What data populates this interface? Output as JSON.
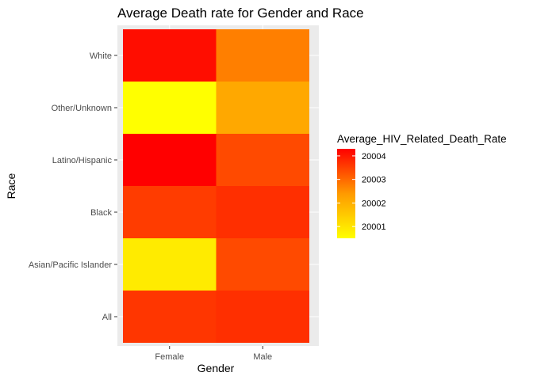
{
  "chart_data": {
    "type": "heatmap",
    "title": "Average Death rate for Gender and Race",
    "xlabel": "Gender",
    "ylabel": "Race",
    "x_categories": [
      "Female",
      "Male"
    ],
    "y_categories": [
      "All",
      "Asian/Pacific Islander",
      "Black",
      "Latino/Hispanic",
      "Other/Unknown",
      "White"
    ],
    "cells": [
      {
        "x": "Female",
        "y": "All",
        "value": 20003.5
      },
      {
        "x": "Male",
        "y": "All",
        "value": 20003.6
      },
      {
        "x": "Female",
        "y": "Asian/Pacific Islander",
        "value": 20000.8
      },
      {
        "x": "Male",
        "y": "Asian/Pacific Islander",
        "value": 20003.2
      },
      {
        "x": "Female",
        "y": "Black",
        "value": 20003.4
      },
      {
        "x": "Male",
        "y": "Black",
        "value": 20003.6
      },
      {
        "x": "Female",
        "y": "Latino/Hispanic",
        "value": 20004.3
      },
      {
        "x": "Male",
        "y": "Latino/Hispanic",
        "value": 20003.2
      },
      {
        "x": "Female",
        "y": "Other/Unknown",
        "value": 20000.5
      },
      {
        "x": "Male",
        "y": "Other/Unknown",
        "value": 20001.8
      },
      {
        "x": "Female",
        "y": "White",
        "value": 20004.1
      },
      {
        "x": "Male",
        "y": "White",
        "value": 20002.4
      }
    ],
    "legend": {
      "title": "Average_HIV_Related_Death_Rate",
      "ticks": [
        20001,
        20002,
        20003,
        20004
      ],
      "range": [
        20000.5,
        20004.3
      ],
      "low_color": "#ffff00",
      "high_color": "#ff0000",
      "placement": "right"
    },
    "panel_background": "#ebebeb",
    "grid": true
  }
}
